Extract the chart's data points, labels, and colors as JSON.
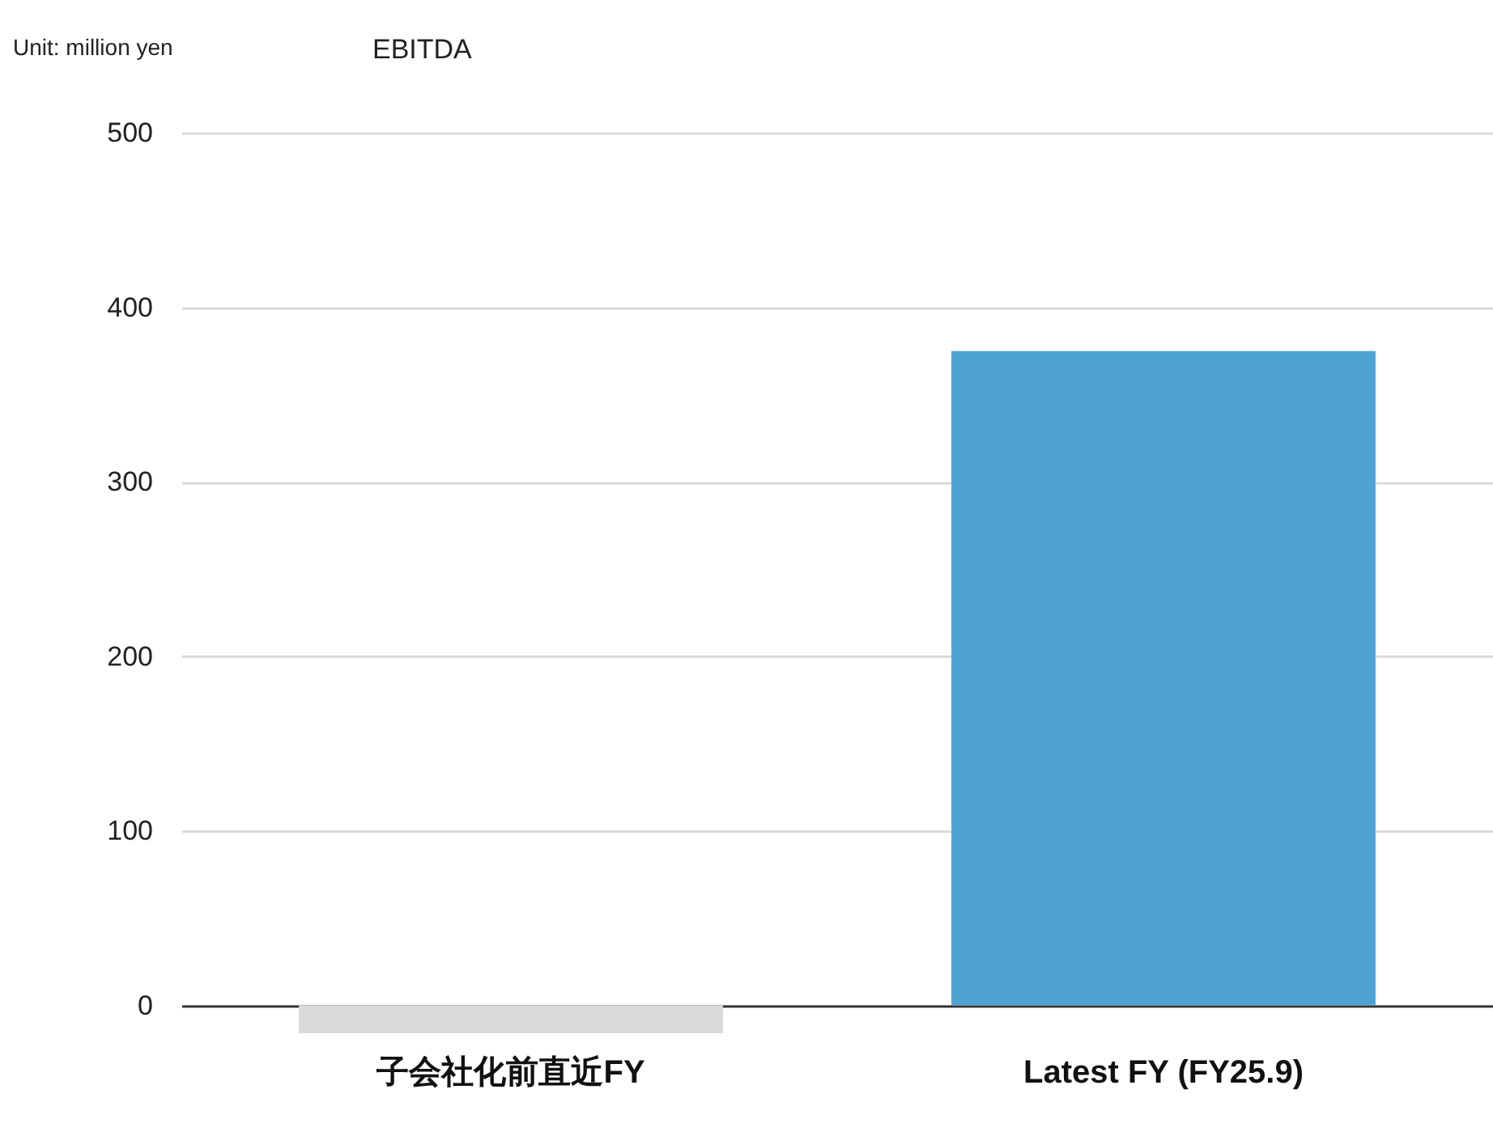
{
  "chart_data": {
    "type": "bar",
    "title": "EBITDA",
    "annotations": [
      "Unit: million yen"
    ],
    "categories": [
      "子会社化前直近FY",
      "Latest FY (FY25.9)"
    ],
    "values": [
      -16,
      375
    ],
    "colors": [
      "#d9d9d9",
      "#4fa3d3"
    ],
    "ylim": [
      -16,
      500
    ],
    "yticks": [
      0,
      100,
      200,
      300,
      400,
      500
    ],
    "grid": "y",
    "legend": false
  }
}
